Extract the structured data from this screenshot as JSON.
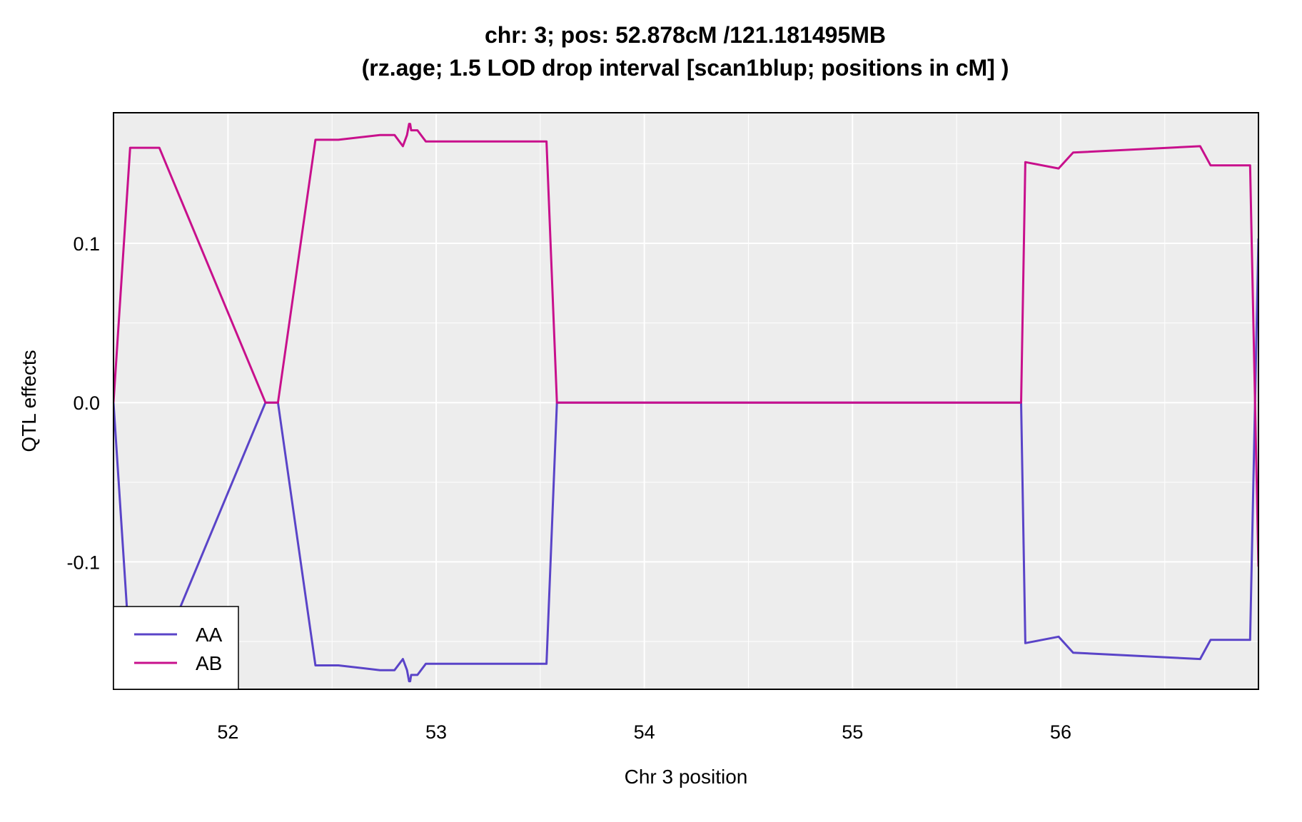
{
  "chart_data": {
    "type": "line",
    "title": "chr: 3; pos: 52.878cM /121.181495MB",
    "subtitle": "(rz.age; 1.5 LOD drop interval [scan1blup; positions in cM] )",
    "xlabel": "Chr 3 position",
    "ylabel": "QTL effects",
    "xlim": [
      51.45,
      56.95
    ],
    "ylim": [
      -0.18,
      0.182
    ],
    "xticks": [
      52,
      53,
      54,
      55,
      56
    ],
    "xtick_labels": [
      "52",
      "53",
      "54",
      "55",
      "56"
    ],
    "yticks": [
      0.1,
      0.0,
      -0.1
    ],
    "ytick_labels": [
      "0.1",
      "0.0",
      "-0.1"
    ],
    "grid": true,
    "panel_background": "#ededed",
    "legend_position": "bottom-left",
    "x": [
      51.45,
      51.53,
      51.67,
      52.18,
      52.24,
      52.42,
      52.53,
      52.73,
      52.8,
      52.84,
      52.86,
      52.87,
      52.875,
      52.88,
      52.89,
      52.91,
      52.95,
      53.53,
      53.58,
      55.81,
      55.83,
      55.99,
      56.06,
      56.67,
      56.72,
      56.91,
      56.95
    ],
    "series": [
      {
        "name": "AA",
        "color": "#5a44c8",
        "values": [
          0.0,
          -0.16,
          -0.16,
          0.0,
          0.0,
          -0.165,
          -0.165,
          -0.168,
          -0.168,
          -0.161,
          -0.168,
          -0.175,
          -0.175,
          -0.171,
          -0.171,
          -0.171,
          -0.164,
          -0.164,
          0.0,
          0.0,
          -0.151,
          -0.147,
          -0.157,
          -0.161,
          -0.149,
          -0.149,
          0.103
        ]
      },
      {
        "name": "AB",
        "color": "#c8108c",
        "values": [
          0.0,
          0.16,
          0.16,
          0.0,
          0.0,
          0.165,
          0.165,
          0.168,
          0.168,
          0.161,
          0.168,
          0.175,
          0.175,
          0.171,
          0.171,
          0.171,
          0.164,
          0.164,
          0.0,
          0.0,
          0.151,
          0.147,
          0.157,
          0.161,
          0.149,
          0.149,
          -0.103
        ]
      }
    ]
  }
}
